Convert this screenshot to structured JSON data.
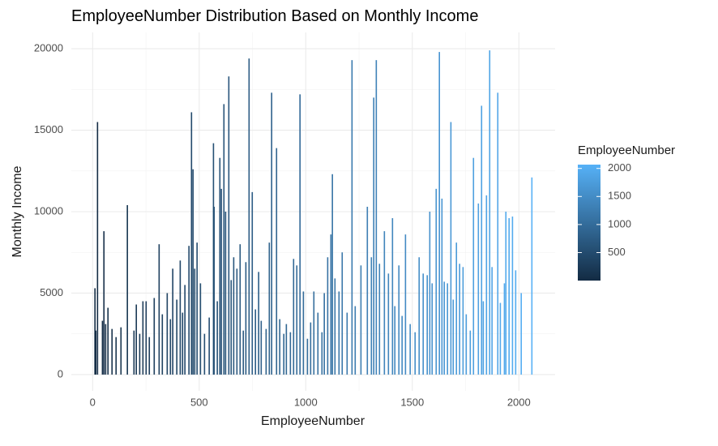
{
  "chart_data": {
    "type": "bar",
    "title": "EmployeeNumber Distribution Based on Monthly Income",
    "x_label": "EmployeeNumber",
    "y_label": "Monthly Income",
    "legend_title": "EmployeeNumber",
    "x": [
      11,
      15,
      23,
      46,
      53,
      61,
      72,
      91,
      110,
      133,
      163,
      194,
      205,
      221,
      236,
      251,
      266,
      289,
      312,
      327,
      350,
      365,
      376,
      395,
      411,
      422,
      433,
      452,
      464,
      471,
      479,
      490,
      506,
      525,
      547,
      567,
      570,
      585,
      597,
      604,
      616,
      624,
      639,
      650,
      662,
      677,
      692,
      707,
      719,
      734,
      749,
      764,
      779,
      791,
      814,
      829,
      840,
      863,
      878,
      897,
      909,
      928,
      943,
      958,
      973,
      989,
      1008,
      1023,
      1038,
      1057,
      1076,
      1087,
      1103,
      1118,
      1125,
      1137,
      1156,
      1171,
      1194,
      1217,
      1232,
      1259,
      1289,
      1308,
      1319,
      1331,
      1346,
      1369,
      1388,
      1407,
      1418,
      1437,
      1452,
      1468,
      1490,
      1513,
      1532,
      1551,
      1570,
      1582,
      1593,
      1612,
      1627,
      1639,
      1650,
      1665,
      1681,
      1692,
      1707,
      1722,
      1738,
      1753,
      1772,
      1787,
      1810,
      1825,
      1833,
      1848,
      1863,
      1874,
      1901,
      1913,
      1932,
      1939,
      1954,
      1970,
      1985,
      2011,
      2061
    ],
    "values": [
      5300,
      2700,
      15500,
      3300,
      8800,
      3100,
      4100,
      2800,
      2300,
      2900,
      10400,
      2700,
      4300,
      2500,
      4500,
      4500,
      2300,
      4700,
      8000,
      3700,
      5000,
      3400,
      6500,
      4600,
      7000,
      3800,
      5500,
      7900,
      16100,
      12600,
      6500,
      8100,
      5600,
      2500,
      3500,
      14200,
      10300,
      4500,
      13300,
      11400,
      16600,
      10000,
      18300,
      5800,
      7200,
      6500,
      8000,
      2700,
      6900,
      19400,
      11200,
      4000,
      6300,
      3300,
      2800,
      8100,
      17300,
      13900,
      3400,
      2500,
      3100,
      2600,
      7100,
      6700,
      17200,
      5100,
      2200,
      3200,
      5100,
      3800,
      2600,
      5000,
      7200,
      8600,
      12300,
      5900,
      5100,
      7500,
      3800,
      19300,
      4200,
      6700,
      10300,
      7200,
      17000,
      19300,
      6800,
      8800,
      6200,
      9600,
      4200,
      6700,
      3600,
      8600,
      3100,
      2600,
      7200,
      6200,
      6100,
      10000,
      5600,
      11400,
      19800,
      10800,
      5700,
      5600,
      15500,
      4600,
      8100,
      6800,
      6600,
      3700,
      2700,
      13300,
      10500,
      16500,
      4500,
      11000,
      19900,
      6600,
      17300,
      4400,
      5600,
      10000,
      9600,
      9700,
      6400,
      5000,
      12100
    ],
    "xlim": [
      -100,
      2170
    ],
    "ylim": [
      -1000,
      21000
    ],
    "xticks": [
      0,
      500,
      1000,
      1500,
      2000
    ],
    "yticks": [
      0,
      5000,
      10000,
      15000,
      20000
    ],
    "xminor": [
      250,
      750,
      1250,
      1750
    ],
    "yminor": [
      2500,
      7500,
      12500,
      17500
    ],
    "grid": true,
    "color_low": "#132B43",
    "color_high": "#56B1F7",
    "color_range": [
      1,
      2068
    ],
    "legend_ticks": [
      500,
      1000,
      1500,
      2000
    ]
  }
}
